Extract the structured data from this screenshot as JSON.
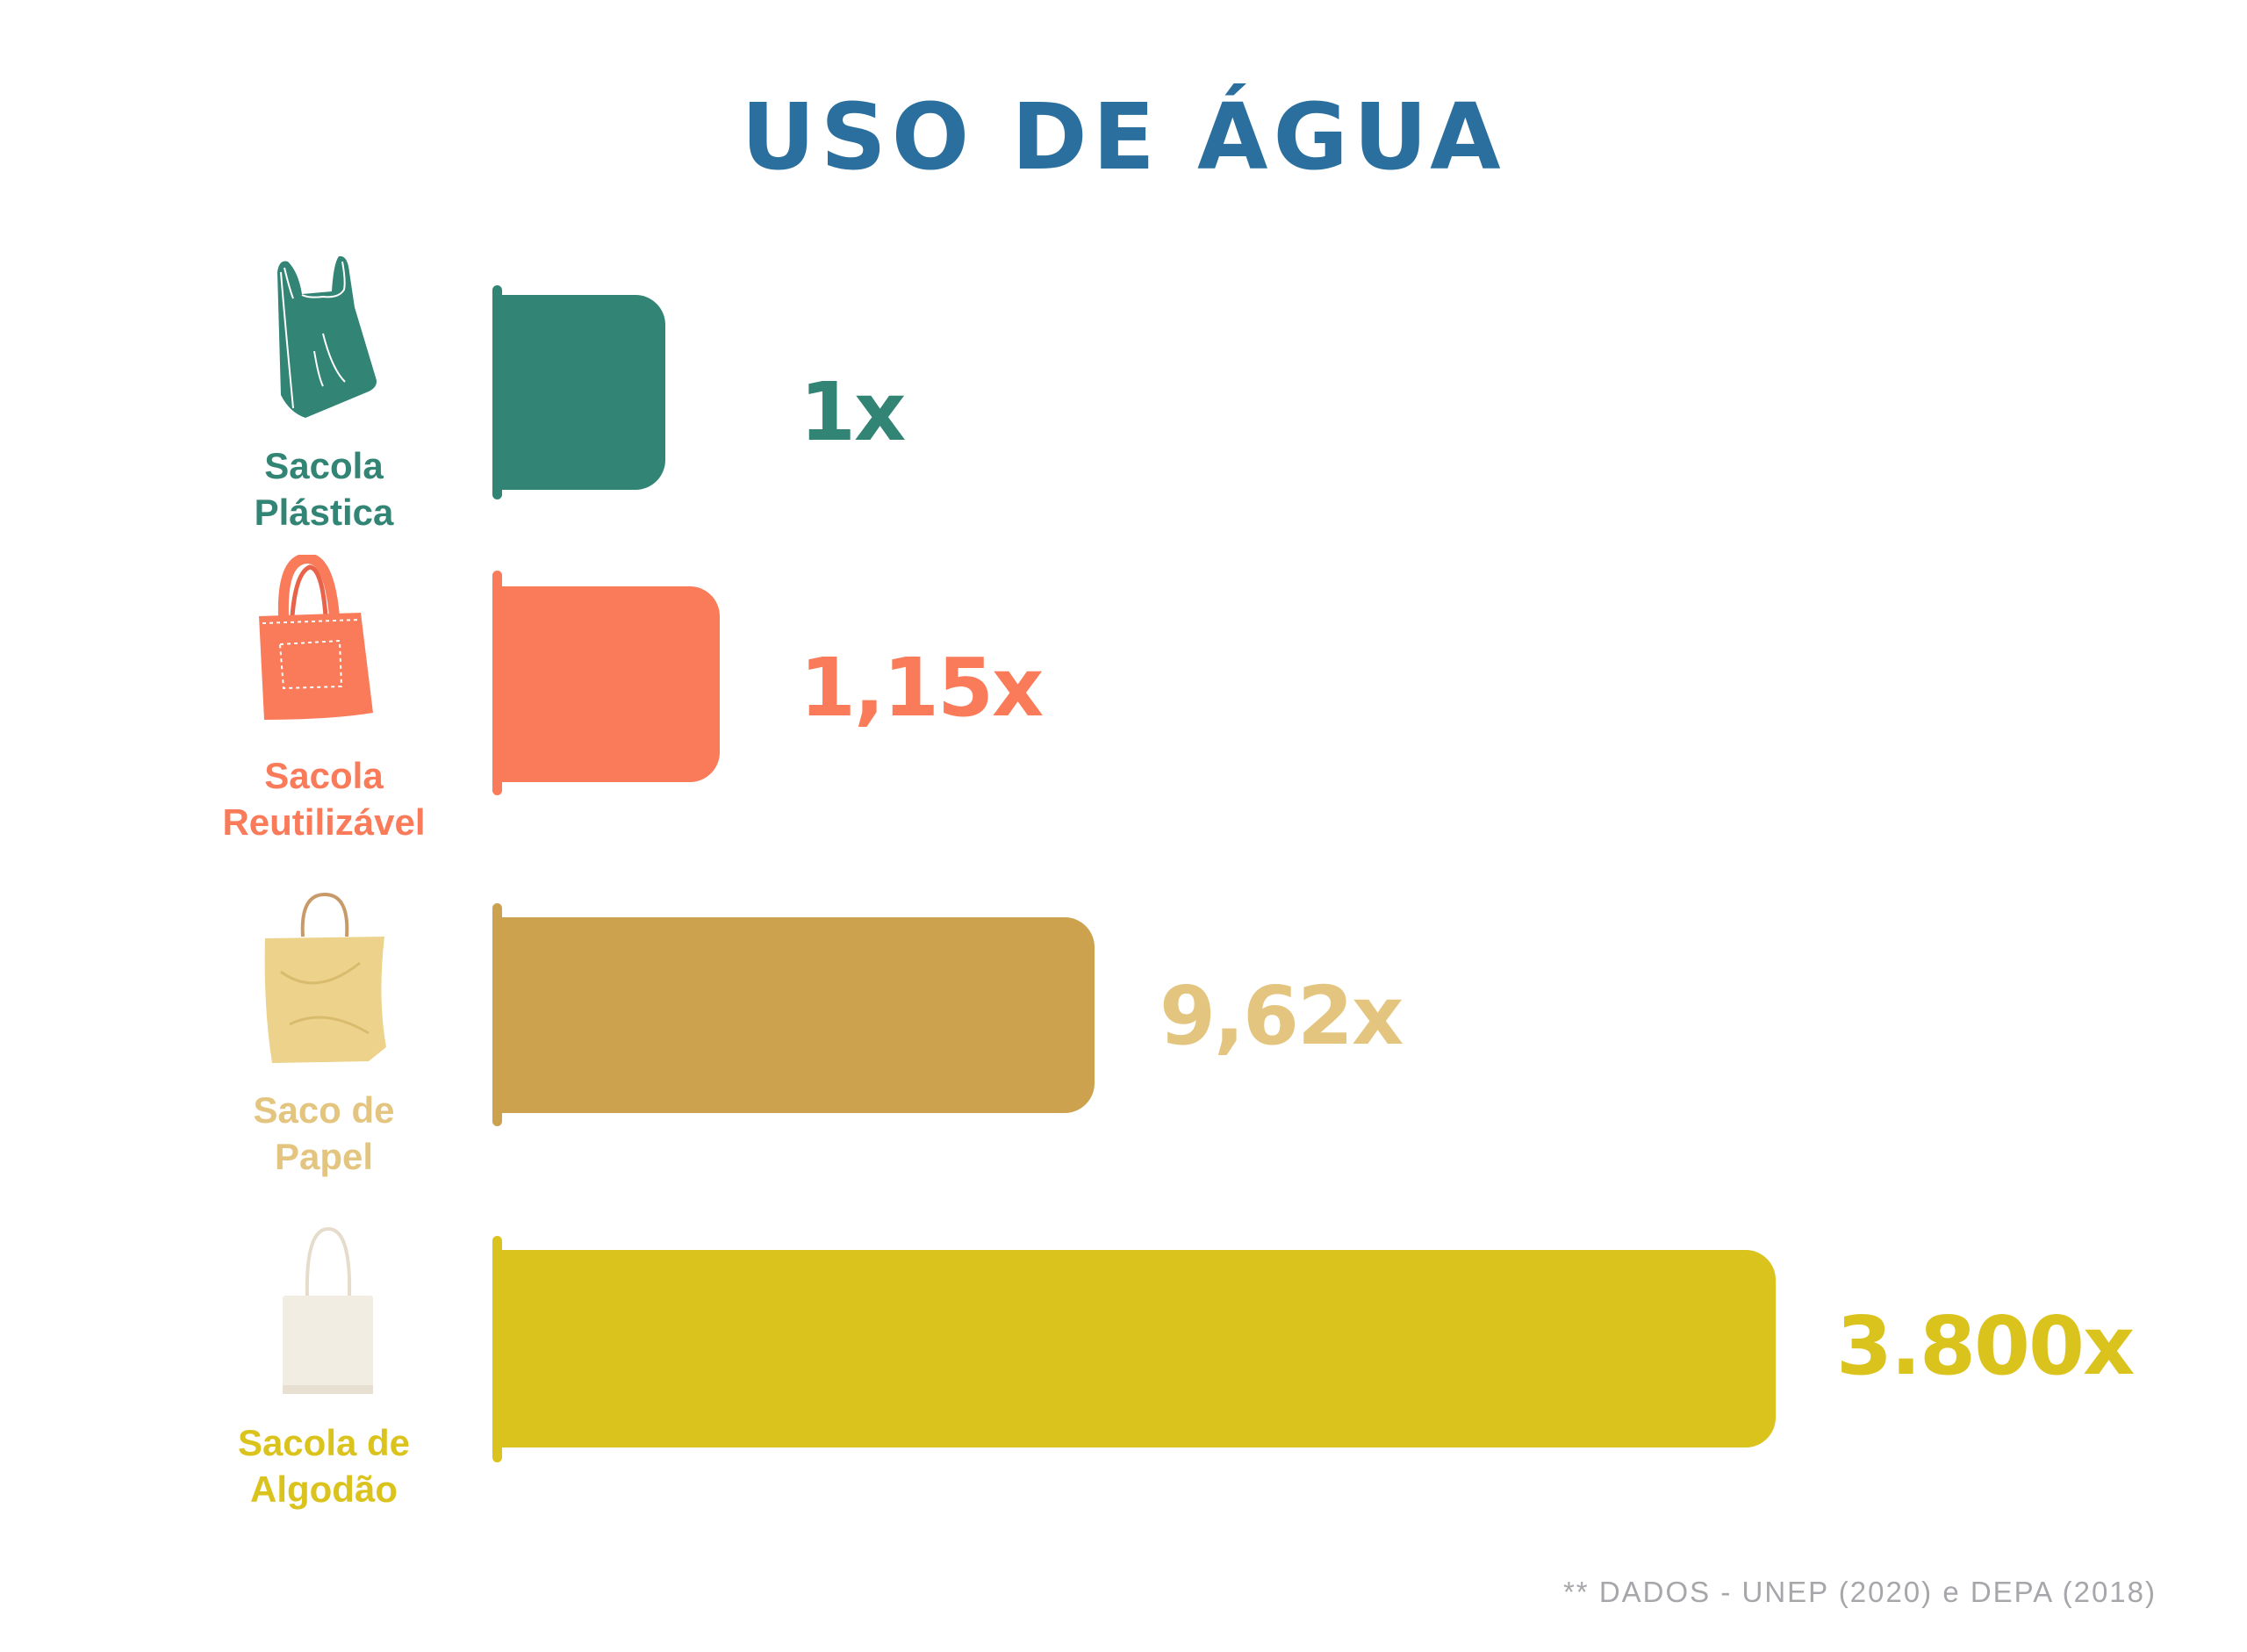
{
  "chart_data": {
    "type": "bar",
    "orientation": "horizontal",
    "title": "USO DE ÁGUA",
    "categories": [
      "Sacola Plástica",
      "Sacola Reutilizável",
      "Saco de Papel",
      "Sacola de Algodão"
    ],
    "category_lines": [
      [
        "Sacola",
        "Plástica"
      ],
      [
        "Sacola",
        "Reutilizável"
      ],
      [
        "Saco de",
        "Papel"
      ],
      [
        "Sacola de",
        "Algodão"
      ]
    ],
    "values": [
      1,
      1.15,
      9.62,
      3800
    ],
    "data_labels": [
      "1x",
      "1,15x",
      "9,62x",
      "3.800x"
    ],
    "colors": [
      "#328474",
      "#F97B5A",
      "#CCA24E",
      "#DBC31E"
    ],
    "label_colors": [
      "#328474",
      "#F97B5A",
      "#E3C57F",
      "#DBC31E"
    ],
    "icons": [
      "plastic-bag-icon",
      "tote-bag-icon",
      "paper-bag-icon",
      "cotton-bag-icon"
    ],
    "grid": false,
    "legend": "none"
  },
  "footer": "** DADOS - UNEP (2020) e DEPA (2018)"
}
